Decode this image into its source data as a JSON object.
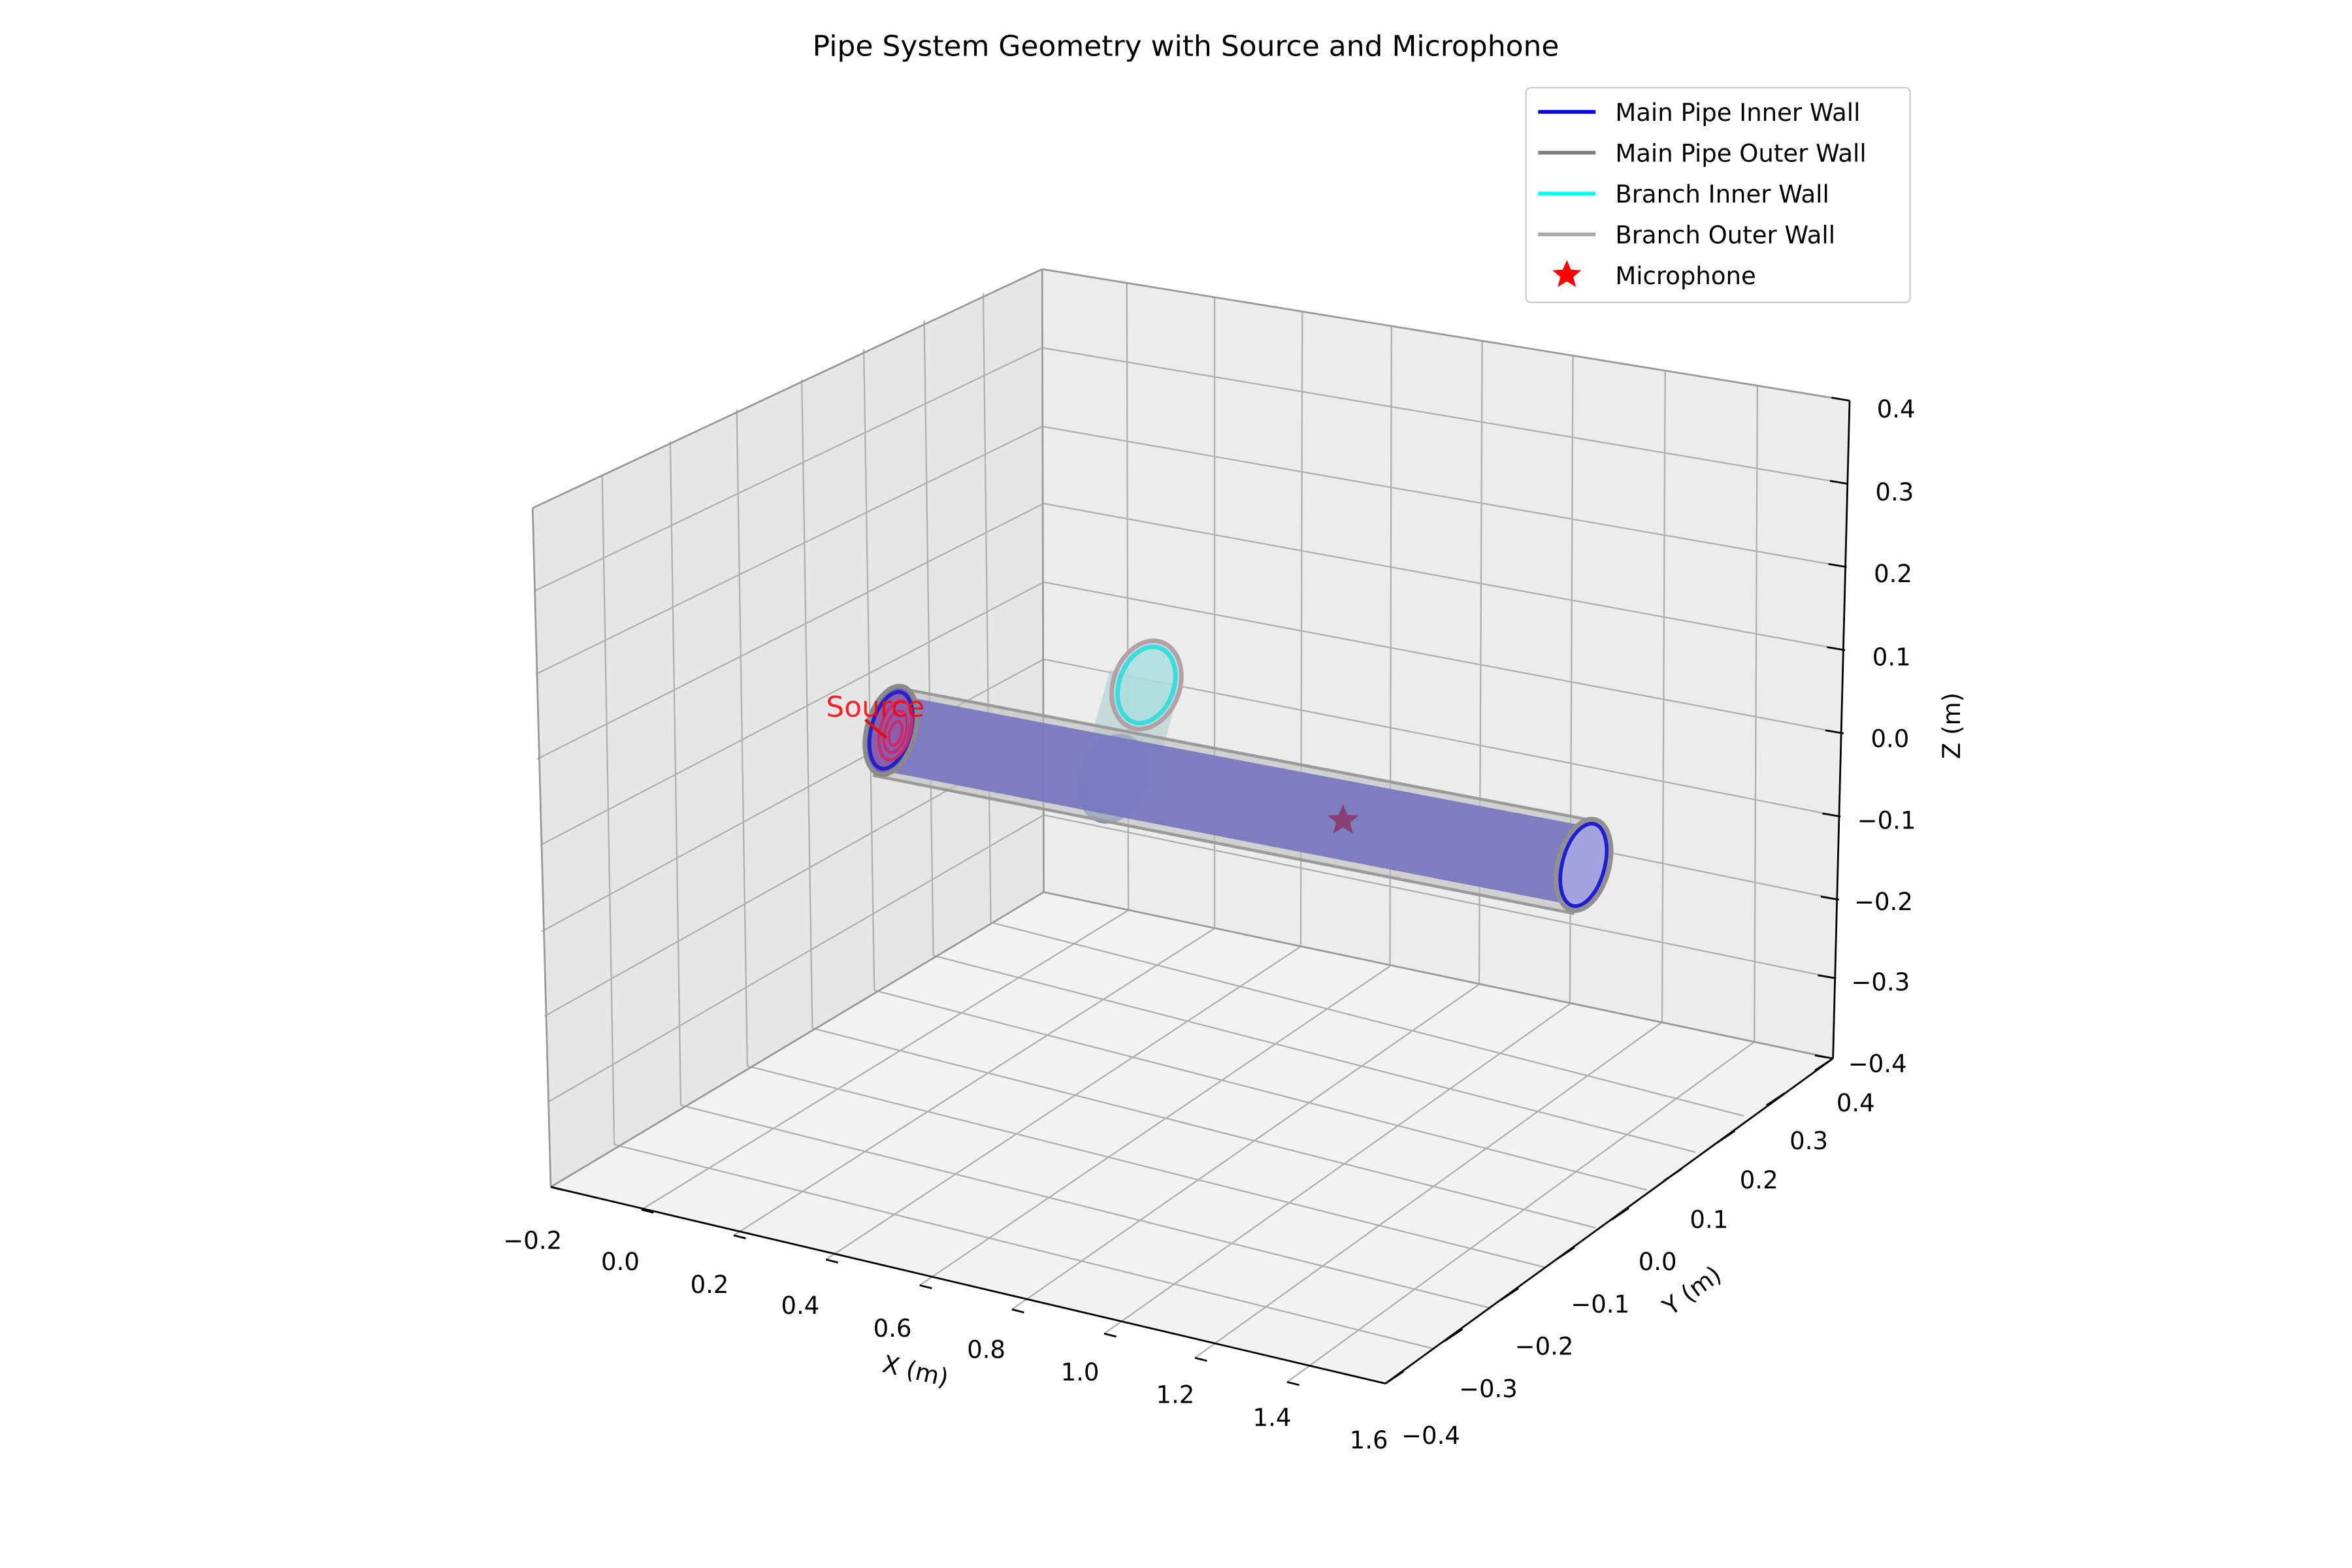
{
  "chart_data": {
    "type": "3d-geometry",
    "title": "Pipe System Geometry with Source and Microphone",
    "xlabel": "X (m)",
    "ylabel": "Y (m)",
    "zlabel": "Z (m)",
    "xlim": [
      -0.2,
      1.6
    ],
    "ylim": [
      -0.4,
      0.4
    ],
    "zlim": [
      -0.4,
      0.4
    ],
    "x_ticks": [
      "−0.2",
      "0.0",
      "0.2",
      "0.4",
      "0.6",
      "0.8",
      "1.0",
      "1.2",
      "1.4",
      "1.6"
    ],
    "y_ticks": [
      "−0.4",
      "−0.3",
      "−0.2",
      "−0.1",
      "0.0",
      "0.1",
      "0.2",
      "0.3",
      "0.4"
    ],
    "z_ticks": [
      "−0.4",
      "−0.3",
      "−0.2",
      "−0.1",
      "0.0",
      "0.1",
      "0.2",
      "0.3",
      "0.4"
    ],
    "grid": true,
    "legend_position": "top-right",
    "series": [
      {
        "name": "Main Pipe Inner Wall",
        "color": "#0000ff",
        "marker": "line"
      },
      {
        "name": "Main Pipe Outer Wall",
        "color": "#808080",
        "marker": "line"
      },
      {
        "name": "Branch Inner Wall",
        "color": "#00ffff",
        "marker": "line"
      },
      {
        "name": "Branch Outer Wall",
        "color": "#a9a9a9",
        "marker": "line"
      },
      {
        "name": "Microphone",
        "color": "#ff0000",
        "marker": "star"
      }
    ],
    "annotations": [
      {
        "text": "Source",
        "color": "#ff0000"
      }
    ],
    "geometry": {
      "main_pipe": {
        "axis": "x",
        "x_start": 0.0,
        "x_end": 1.5,
        "y": 0.0,
        "z": 0.0
      },
      "branch_pipe": {
        "axis": "z",
        "x": 0.5,
        "y": 0.0,
        "z_start": 0.0,
        "z_end": 0.15
      },
      "microphone": {
        "x": 1.0,
        "y": 0.0,
        "z": 0.0
      },
      "source": {
        "x": 0.0,
        "y": 0.0,
        "z": 0.0
      }
    }
  }
}
